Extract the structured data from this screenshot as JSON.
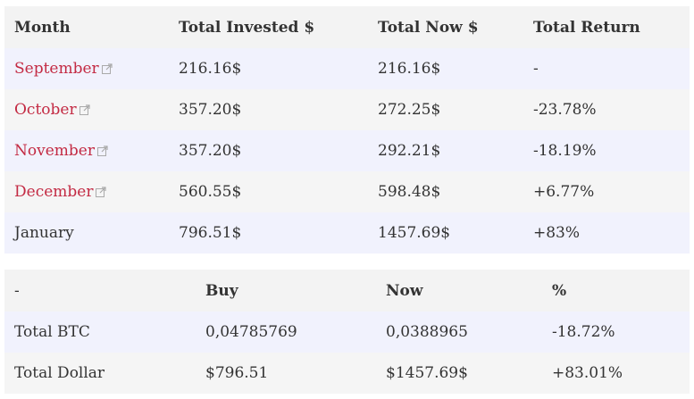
{
  "monthly": {
    "headers": [
      "Month",
      "Total Invested $",
      "Total Now $",
      "Total Return"
    ],
    "rows": [
      {
        "month": "September",
        "invested": "216.16$",
        "now": "216.16$",
        "return": "-",
        "link": true
      },
      {
        "month": "October",
        "invested": "357.20$",
        "now": "272.25$",
        "return": "-23.78%",
        "link": true
      },
      {
        "month": "November",
        "invested": "357.20$",
        "now": "292.21$",
        "return": "-18.19%",
        "link": true
      },
      {
        "month": "December",
        "invested": "560.55$",
        "now": "598.48$",
        "return": "+6.77%",
        "link": true
      },
      {
        "month": "January",
        "invested": "796.51$",
        "now": "1457.69$",
        "return": "+83%",
        "link": false
      }
    ]
  },
  "totals": {
    "headers": [
      "-",
      "Buy",
      "Now",
      "%"
    ],
    "rows": [
      {
        "label": "Total BTC",
        "buy": "0,04785769",
        "now": "0,0388965",
        "percent": "-18.72%"
      },
      {
        "label": "Total Dollar",
        "buy": "$796.51",
        "now": "$1457.69$",
        "percent": "+83.01%"
      }
    ]
  },
  "colors": {
    "link": "#c32a43",
    "header_bg": "#f3f3f3",
    "row_odd_bg": "#f1f2fd",
    "row_even_bg": "#f5f5f5",
    "text": "#333333"
  },
  "icons": {
    "external_link": "external-link-icon"
  }
}
